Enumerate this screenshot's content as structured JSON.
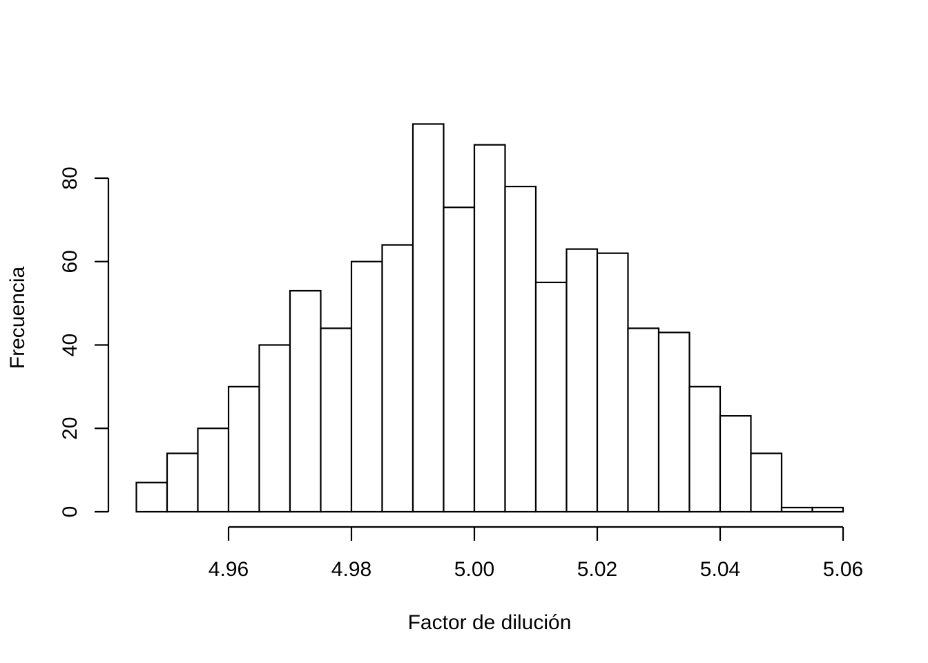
{
  "chart_data": {
    "type": "bar",
    "subtype": "histogram",
    "title": "",
    "xlabel": "Factor de dilución",
    "ylabel": "Frecuencia",
    "bin_edges": [
      4.945,
      4.95,
      4.955,
      4.96,
      4.965,
      4.97,
      4.975,
      4.98,
      4.985,
      4.99,
      4.995,
      5.0,
      5.005,
      5.01,
      5.015,
      5.02,
      5.025,
      5.03,
      5.035,
      5.04,
      5.045,
      5.05,
      5.055,
      5.06
    ],
    "values": [
      7,
      14,
      20,
      30,
      40,
      53,
      44,
      60,
      64,
      93,
      73,
      88,
      78,
      55,
      63,
      62,
      44,
      43,
      30,
      23,
      14,
      1,
      1
    ],
    "x_ticks": [
      4.96,
      4.98,
      5.0,
      5.02,
      5.04,
      5.06
    ],
    "x_tick_labels": [
      "4.96",
      "4.98",
      "5.00",
      "5.02",
      "5.04",
      "5.06"
    ],
    "y_ticks": [
      0,
      20,
      40,
      60,
      80
    ],
    "y_tick_labels": [
      "0",
      "20",
      "40",
      "60",
      "80"
    ],
    "xlim": [
      4.945,
      5.06
    ],
    "ylim": [
      0,
      93
    ],
    "grid": false,
    "colors": {
      "bar_fill": "#ffffff",
      "bar_stroke": "#000000",
      "background": "#ffffff"
    }
  }
}
